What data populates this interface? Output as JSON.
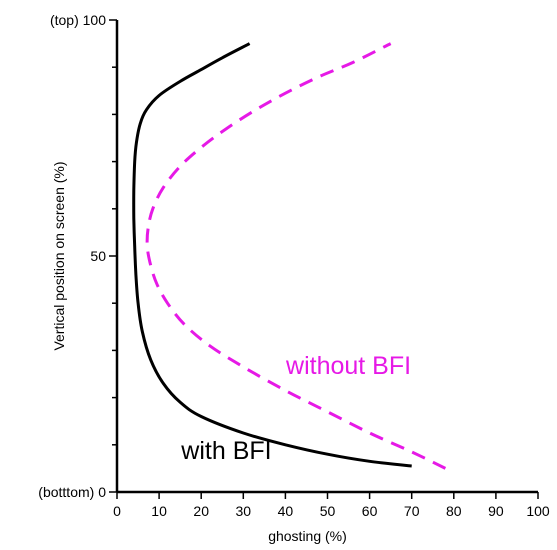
{
  "chart_data": {
    "type": "line",
    "title": "",
    "xlabel": "ghosting (%)",
    "ylabel": "Vertical position on screen (%)",
    "xlim": [
      0,
      100
    ],
    "ylim": [
      0,
      100
    ],
    "grid": false,
    "x_ticks": [
      0,
      10,
      20,
      30,
      40,
      50,
      60,
      70,
      80,
      90,
      100
    ],
    "y_ticks": [
      0,
      50,
      100
    ],
    "y_tick_labels": [
      "(botttom) 0",
      "50",
      "(top) 100"
    ],
    "y_minor_ticks": [
      10,
      20,
      30,
      40,
      60,
      70,
      80,
      90
    ],
    "series": [
      {
        "name": "with BFI",
        "color": "#000000",
        "dash": "solid",
        "x": [
          70,
          60,
          50,
          40,
          30,
          20,
          15,
          11,
          8,
          6,
          5,
          4.5,
          4.2,
          4.0,
          4.0,
          4.2,
          4.6,
          5.5,
          7,
          10,
          15,
          20,
          25,
          31.5
        ],
        "y": [
          5.5,
          6.5,
          8,
          10,
          12.5,
          16,
          19,
          23,
          28,
          34,
          40,
          46,
          52,
          58,
          64,
          70,
          74,
          78,
          81,
          84,
          87,
          89.5,
          92,
          95
        ]
      },
      {
        "name": "without BFI",
        "color": "#e619e6",
        "dash": "dashed",
        "x": [
          78,
          70,
          60,
          50,
          40,
          30,
          22,
          16,
          12,
          9.5,
          8,
          7.2,
          7.4,
          8.5,
          11,
          15,
          20,
          26,
          33,
          40,
          48,
          56,
          65
        ],
        "y": [
          5,
          8.5,
          12.5,
          17,
          21.5,
          26.5,
          31,
          35.5,
          40,
          44,
          48,
          52,
          56,
          60,
          64.5,
          69,
          73,
          77,
          81,
          84.5,
          88,
          91,
          95
        ]
      }
    ],
    "annotations": [
      {
        "text": "without BFI",
        "x": 55,
        "y": 25,
        "color": "#e619e6"
      },
      {
        "text": "with BFI",
        "x": 26,
        "y": 7,
        "color": "#000000"
      }
    ]
  }
}
